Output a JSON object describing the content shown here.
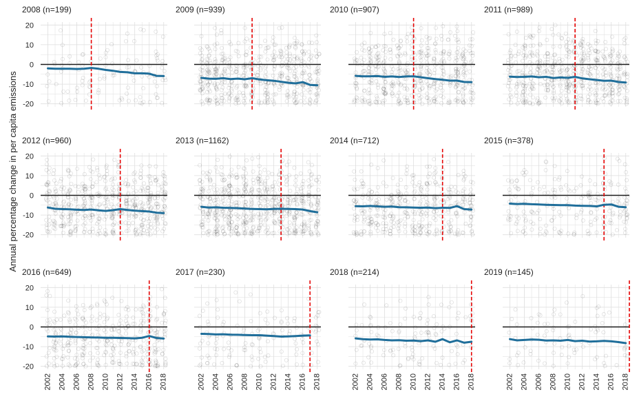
{
  "chart_data": {
    "type": "scatter",
    "ylabel": "Annual percentage change in per capita emissions",
    "xlabel": "",
    "xlim": [
      2001,
      2018.5
    ],
    "ylim": [
      -21.5,
      21.5
    ],
    "x_ticks": [
      2002,
      2004,
      2006,
      2008,
      2010,
      2012,
      2014,
      2016,
      2018
    ],
    "x_tick_labels": [
      "2002",
      "2004",
      "2006",
      "2008",
      "2010",
      "2012",
      "2014",
      "2016",
      "2018"
    ],
    "y_ticks": [
      -20,
      -10,
      0,
      10,
      20
    ],
    "y_tick_labels": [
      "-20",
      "-10",
      "0",
      "10",
      "20"
    ],
    "reference_line_y": 0,
    "colors": {
      "trend": "#1f6e9a",
      "marker_line": "#e60000",
      "zero_line": "#1a1a1a",
      "points": "#000000",
      "grid": "#dedede",
      "text": "#222222"
    },
    "panels": [
      {
        "title": "2008 (n=199)",
        "cohort_year": 2008,
        "n": 199,
        "trend_x": [
          2002,
          2003,
          2004,
          2005,
          2006,
          2007,
          2008,
          2009,
          2010,
          2011,
          2012,
          2013,
          2014,
          2015,
          2016,
          2017,
          2018
        ],
        "trend_y": [
          -2,
          -2.2,
          -2.2,
          -2.2,
          -2.3,
          -2.2,
          -1.8,
          -2.2,
          -2.8,
          -3.2,
          -3.8,
          -4.0,
          -4.5,
          -4.5,
          -4.7,
          -5.8,
          -5.9
        ]
      },
      {
        "title": "2009 (n=939)",
        "cohort_year": 2009,
        "n": 939,
        "trend_x": [
          2002,
          2003,
          2004,
          2005,
          2006,
          2007,
          2008,
          2009,
          2010,
          2011,
          2012,
          2013,
          2014,
          2015,
          2016,
          2017,
          2018
        ],
        "trend_y": [
          -6.8,
          -7.2,
          -7.3,
          -7.0,
          -7.4,
          -7.2,
          -7.5,
          -7.0,
          -7.6,
          -8.0,
          -8.3,
          -8.8,
          -9.3,
          -9.6,
          -9.0,
          -10.4,
          -10.6
        ]
      },
      {
        "title": "2010 (n=907)",
        "cohort_year": 2010,
        "n": 907,
        "trend_x": [
          2002,
          2003,
          2004,
          2005,
          2006,
          2007,
          2008,
          2009,
          2010,
          2011,
          2012,
          2013,
          2014,
          2015,
          2016,
          2017,
          2018
        ],
        "trend_y": [
          -5.8,
          -6.0,
          -6.0,
          -5.9,
          -6.3,
          -6.1,
          -6.4,
          -6.1,
          -6.0,
          -6.5,
          -7.0,
          -7.4,
          -7.8,
          -8.2,
          -8.2,
          -8.9,
          -9.0
        ]
      },
      {
        "title": "2011 (n=989)",
        "cohort_year": 2011,
        "n": 989,
        "trend_x": [
          2002,
          2003,
          2004,
          2005,
          2006,
          2007,
          2008,
          2009,
          2010,
          2011,
          2012,
          2013,
          2014,
          2015,
          2016,
          2017,
          2018
        ],
        "trend_y": [
          -6.2,
          -6.4,
          -6.3,
          -6.1,
          -6.5,
          -6.3,
          -6.9,
          -6.6,
          -6.8,
          -6.3,
          -7.1,
          -7.5,
          -7.9,
          -8.3,
          -8.2,
          -8.9,
          -9.2
        ]
      },
      {
        "title": "2012 (n=960)",
        "cohort_year": 2012,
        "n": 960,
        "trend_x": [
          2002,
          2003,
          2004,
          2005,
          2006,
          2007,
          2008,
          2009,
          2010,
          2011,
          2012,
          2013,
          2014,
          2015,
          2016,
          2017,
          2018
        ],
        "trend_y": [
          -6.2,
          -6.8,
          -7.0,
          -7.1,
          -7.3,
          -7.4,
          -7.2,
          -7.6,
          -7.9,
          -7.5,
          -7.0,
          -7.4,
          -7.8,
          -8.0,
          -8.2,
          -8.8,
          -9.0
        ]
      },
      {
        "title": "2013 (n=1162)",
        "cohort_year": 2013,
        "n": 1162,
        "trend_x": [
          2002,
          2003,
          2004,
          2005,
          2006,
          2007,
          2008,
          2009,
          2010,
          2011,
          2012,
          2013,
          2014,
          2015,
          2016,
          2017,
          2018
        ],
        "trend_y": [
          -5.8,
          -6.2,
          -6.1,
          -6.3,
          -6.4,
          -6.5,
          -6.7,
          -6.9,
          -7.0,
          -7.1,
          -6.9,
          -6.8,
          -6.9,
          -7.0,
          -7.2,
          -8.0,
          -8.6
        ]
      },
      {
        "title": "2014 (n=712)",
        "cohort_year": 2014,
        "n": 712,
        "trend_x": [
          2002,
          2003,
          2004,
          2005,
          2006,
          2007,
          2008,
          2009,
          2010,
          2011,
          2012,
          2013,
          2014,
          2015,
          2016,
          2017,
          2018
        ],
        "trend_y": [
          -5.5,
          -5.6,
          -5.4,
          -5.6,
          -5.8,
          -5.7,
          -6.0,
          -6.1,
          -6.2,
          -6.3,
          -6.2,
          -6.5,
          -6.3,
          -6.4,
          -5.5,
          -7.0,
          -7.2
        ]
      },
      {
        "title": "2015 (n=378)",
        "cohort_year": 2015,
        "n": 378,
        "trend_x": [
          2002,
          2003,
          2004,
          2005,
          2006,
          2007,
          2008,
          2009,
          2010,
          2011,
          2012,
          2013,
          2014,
          2015,
          2016,
          2017,
          2018
        ],
        "trend_y": [
          -4.2,
          -4.4,
          -4.3,
          -4.5,
          -4.6,
          -4.8,
          -4.9,
          -5.0,
          -5.0,
          -5.2,
          -5.3,
          -5.4,
          -5.6,
          -4.8,
          -4.6,
          -5.8,
          -6.0
        ]
      },
      {
        "title": "2016 (n=649)",
        "cohort_year": 2016,
        "n": 649,
        "trend_x": [
          2002,
          2003,
          2004,
          2005,
          2006,
          2007,
          2008,
          2009,
          2010,
          2011,
          2012,
          2013,
          2014,
          2015,
          2016,
          2017,
          2018
        ],
        "trend_y": [
          -4.8,
          -4.9,
          -4.8,
          -5.0,
          -5.1,
          -5.2,
          -5.3,
          -5.4,
          -5.5,
          -5.5,
          -5.6,
          -5.7,
          -5.8,
          -5.5,
          -4.6,
          -5.6,
          -5.9
        ]
      },
      {
        "title": "2017 (n=230)",
        "cohort_year": 2017,
        "n": 230,
        "trend_x": [
          2002,
          2003,
          2004,
          2005,
          2006,
          2007,
          2008,
          2009,
          2010,
          2011,
          2012,
          2013,
          2014,
          2015,
          2016,
          2017
        ],
        "trend_y": [
          -3.5,
          -3.6,
          -3.8,
          -3.7,
          -3.9,
          -4.0,
          -4.1,
          -4.2,
          -4.2,
          -4.4,
          -4.6,
          -4.9,
          -4.8,
          -4.6,
          -4.4,
          -4.3
        ]
      },
      {
        "title": "2018 (n=214)",
        "cohort_year": 2018,
        "n": 214,
        "trend_x": [
          2002,
          2003,
          2004,
          2005,
          2006,
          2007,
          2008,
          2009,
          2010,
          2011,
          2012,
          2013,
          2014,
          2015,
          2016,
          2017,
          2018
        ],
        "trend_y": [
          -5.8,
          -6.2,
          -6.4,
          -6.3,
          -6.6,
          -6.8,
          -6.7,
          -7.0,
          -6.9,
          -7.2,
          -6.8,
          -7.5,
          -6.2,
          -7.8,
          -6.8,
          -8.0,
          -7.5
        ]
      },
      {
        "title": "2019 (n=145)",
        "cohort_year": 2019,
        "n": 145,
        "trend_x": [
          2002,
          2003,
          2004,
          2005,
          2006,
          2007,
          2008,
          2009,
          2010,
          2011,
          2012,
          2013,
          2014,
          2015,
          2016,
          2017,
          2018
        ],
        "trend_y": [
          -6.2,
          -6.8,
          -6.6,
          -6.4,
          -6.5,
          -6.9,
          -6.8,
          -7.0,
          -6.6,
          -7.2,
          -7.0,
          -7.4,
          -7.3,
          -7.1,
          -7.3,
          -7.7,
          -8.2
        ]
      }
    ]
  }
}
